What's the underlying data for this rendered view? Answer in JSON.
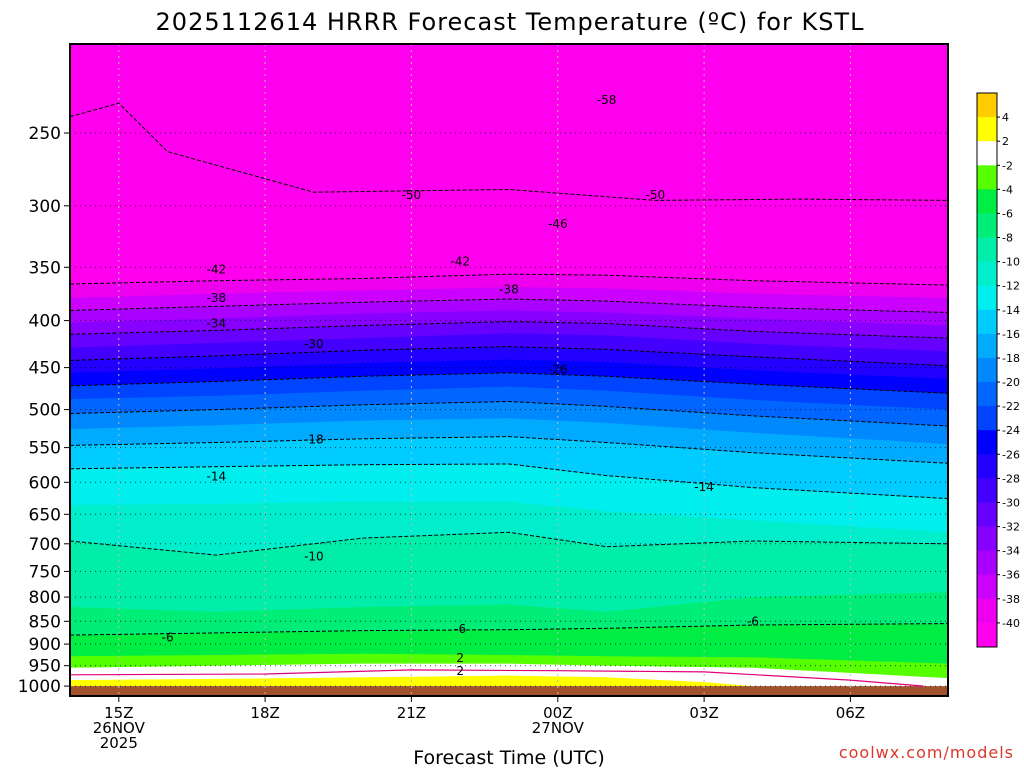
{
  "chart_data": {
    "type": "heatmap",
    "title": "2025112614 HRRR Forecast Temperature (ºC) for KSTL",
    "xlabel": "Forecast Time (UTC)",
    "ylabel": "",
    "credit": "coolwx.com/models",
    "y_scale": "log",
    "y_inverted": true,
    "ylim": [
      1025,
      200
    ],
    "y_ticks": [
      250,
      300,
      350,
      400,
      450,
      500,
      550,
      600,
      650,
      700,
      750,
      800,
      850,
      900,
      950,
      1000
    ],
    "x_hours": [
      0,
      3,
      6,
      9,
      12,
      15
    ],
    "x_tick_labels": [
      [
        "15Z",
        "26NOV",
        "2025"
      ],
      [
        "18Z"
      ],
      [
        "21Z"
      ],
      [
        "00Z",
        "27NOV"
      ],
      [
        "03Z"
      ],
      [
        "06Z"
      ]
    ],
    "xlim_hours": [
      -1,
      17
    ],
    "colorbar_levels": [
      4,
      2,
      -2,
      -4,
      -6,
      -8,
      -10,
      -12,
      -14,
      -16,
      -18,
      -20,
      -22,
      -24,
      -26,
      -28,
      -30,
      -32,
      -34,
      -36,
      -38,
      -40
    ],
    "colorbar_colors": [
      "#ffcc00",
      "#ffff00",
      "#ffffff",
      "#55ff00",
      "#00ee44",
      "#00ee77",
      "#00eeaa",
      "#00eecc",
      "#00eeee",
      "#00ccff",
      "#00aaff",
      "#0088ff",
      "#0066ff",
      "#0044ff",
      "#0000ff",
      "#2200ff",
      "#4400ff",
      "#6600ff",
      "#8800ff",
      "#aa00ff",
      "#cc00ff",
      "#ee00ee",
      "#ff00ee"
    ],
    "contour_labels": [
      {
        "text": "-58",
        "hour": 10.0,
        "p": 230
      },
      {
        "text": "-50",
        "hour": 6.0,
        "p": 292
      },
      {
        "text": "-50",
        "hour": 11.0,
        "p": 292
      },
      {
        "text": "-46",
        "hour": 9.0,
        "p": 314
      },
      {
        "text": "-42",
        "hour": 2.0,
        "p": 352
      },
      {
        "text": "-42",
        "hour": 7.0,
        "p": 345
      },
      {
        "text": "-38",
        "hour": 2.0,
        "p": 378
      },
      {
        "text": "-38",
        "hour": 8.0,
        "p": 370
      },
      {
        "text": "-34",
        "hour": 2.0,
        "p": 403
      },
      {
        "text": "-30",
        "hour": 4.0,
        "p": 424
      },
      {
        "text": "-26",
        "hour": 9.0,
        "p": 452
      },
      {
        "text": "-18",
        "hour": 4.0,
        "p": 539
      },
      {
        "text": "-14",
        "hour": 2.0,
        "p": 591
      },
      {
        "text": "-14",
        "hour": 12.0,
        "p": 607
      },
      {
        "text": "-10",
        "hour": 4.0,
        "p": 723
      },
      {
        "text": "-6",
        "hour": 1.0,
        "p": 885
      },
      {
        "text": "-6",
        "hour": 7.0,
        "p": 867
      },
      {
        "text": "-6",
        "hour": 13.0,
        "p": 850
      },
      {
        "text": "2",
        "hour": 7.0,
        "p": 932
      },
      {
        "text": "2",
        "hour": 7.0,
        "p": 963
      }
    ]
  }
}
